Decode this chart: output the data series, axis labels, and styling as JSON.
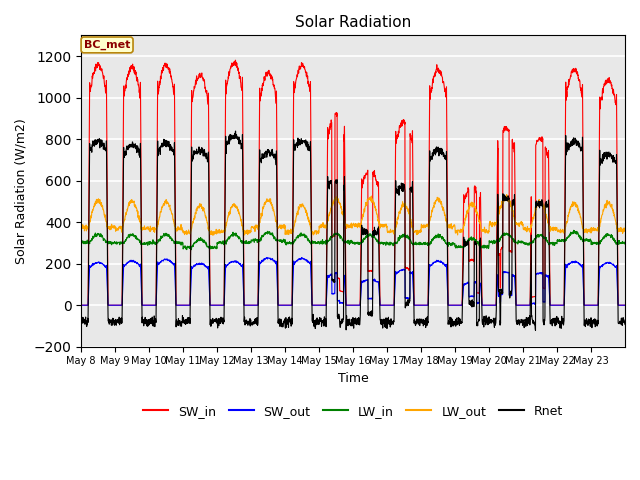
{
  "title": "Solar Radiation",
  "xlabel": "Time",
  "ylabel": "Solar Radiation (W/m2)",
  "ylim": [
    -200,
    1300
  ],
  "yticks": [
    -200,
    0,
    200,
    400,
    600,
    800,
    1000,
    1200
  ],
  "annotation": "BC_met",
  "colors": {
    "SW_in": "red",
    "SW_out": "blue",
    "LW_in": "green",
    "LW_out": "orange",
    "Rnet": "black"
  },
  "x_tick_labels": [
    "May 8",
    "May 9",
    "May 10",
    "May 11",
    "May 12",
    "May 13",
    "May 14",
    "May 15",
    "May 16",
    "May 17",
    "May 18",
    "May 19",
    "May 20",
    "May 21",
    "May 22",
    "May 23"
  ],
  "background_color": "#e8e8e8",
  "grid_color": "white",
  "linewidth": 0.8,
  "cloud_factors": [
    0.98,
    0.97,
    0.98,
    0.94,
    0.99,
    0.95,
    0.98,
    0.78,
    0.55,
    0.75,
    0.96,
    0.48,
    0.72,
    0.68,
    0.96,
    0.92
  ]
}
